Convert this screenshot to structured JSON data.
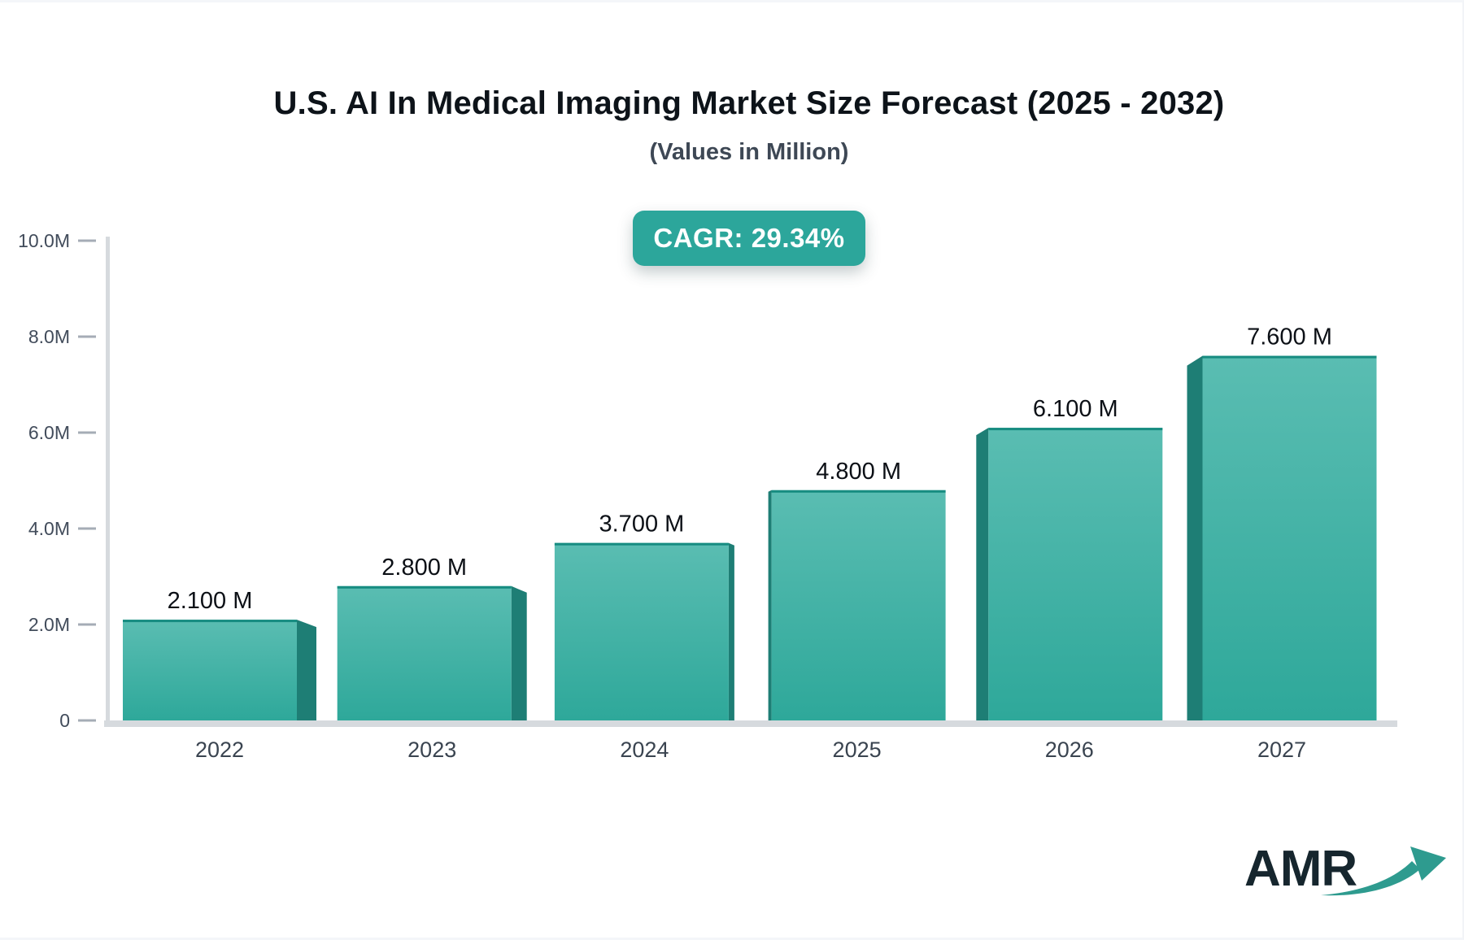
{
  "header": {
    "title": "U.S. AI In Medical Imaging Market Size Forecast (2025 - 2032)",
    "subtitle": "(Values in Million)"
  },
  "badge": {
    "label": "CAGR: 29.34%",
    "bg_color": "#2ca69b",
    "text_color": "#ffffff"
  },
  "chart_data": {
    "type": "bar",
    "title": "U.S. AI In Medical Imaging Market Size Forecast (2025 - 2032)",
    "subtitle": "(Values in Million)",
    "cagr_percent": 29.34,
    "categories": [
      "2022",
      "2023",
      "2024",
      "2025",
      "2026",
      "2027"
    ],
    "values": [
      2.1,
      2.8,
      3.7,
      4.8,
      6.1,
      7.6
    ],
    "data_labels": [
      "2.100 M",
      "2.800 M",
      "3.700 M",
      "4.800 M",
      "6.100 M",
      "7.600 M"
    ],
    "xlabel": "",
    "ylabel": "",
    "ylim": [
      0,
      10
    ],
    "yticks": [
      {
        "value": 0,
        "label": "0"
      },
      {
        "value": 2,
        "label": "2.0M"
      },
      {
        "value": 4,
        "label": "4.0M"
      },
      {
        "value": 6,
        "label": "6.0M"
      },
      {
        "value": 8,
        "label": "8.0M"
      },
      {
        "value": 10,
        "label": "10.0M"
      }
    ],
    "grid": false,
    "legend": false,
    "colors": {
      "bar_face_top": "#5abdb2",
      "bar_face_bottom": "#2ea89a",
      "bar_side": "#1e7e75",
      "bar_top_edge": "#178c81",
      "axis_line": "#d6dade",
      "tick_dash": "#a5acb6",
      "tick_label": "#424c5b",
      "category_label": "#3a4450",
      "value_label": "#0c1016"
    }
  },
  "logo": {
    "text": "AMR",
    "text_color": "#16262e",
    "arrow_color": "#2e9b8f"
  }
}
